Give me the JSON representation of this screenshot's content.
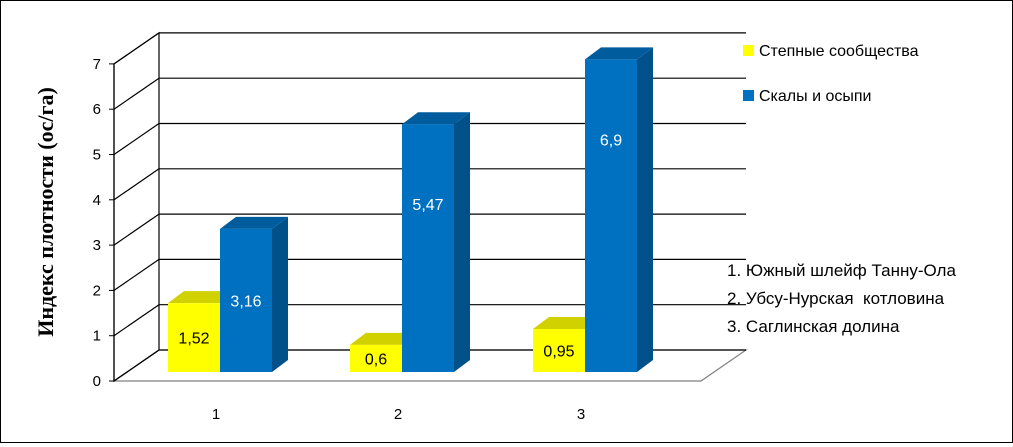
{
  "chart_data": {
    "type": "bar",
    "ylabel": "Индекс плотности (ос/га)",
    "xlabel": "",
    "categories": [
      "1",
      "2",
      "3"
    ],
    "ylim": [
      0,
      7
    ],
    "yticks": [
      "0",
      "1",
      "2",
      "3",
      "4",
      "5",
      "6",
      "7"
    ],
    "grid": true,
    "legend_position": "right",
    "series": [
      {
        "name": "Степные сообщества",
        "color": "#ffff00",
        "values": [
          1.52,
          0.6,
          0.95
        ],
        "labels": [
          "1,52",
          "0,6",
          "0,95"
        ]
      },
      {
        "name": "Скалы и осыпи",
        "color": "#0070c0",
        "values": [
          3.16,
          5.47,
          6.9
        ],
        "labels": [
          "3,16",
          "5,47",
          "6,9"
        ]
      }
    ],
    "annotations": [
      "1. Южный шлейф Танну-Ола",
      "2. Убсу-Нурская  котловина",
      "3. Саглинская долина"
    ]
  }
}
